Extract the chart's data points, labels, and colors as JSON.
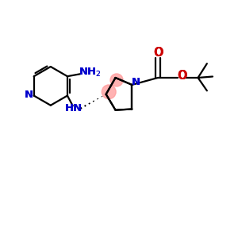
{
  "bg_color": "#ffffff",
  "bond_color": "#000000",
  "N_color": "#0000cc",
  "O_color": "#cc0000",
  "highlight_color": "#ff9999",
  "figsize": [
    3.0,
    3.0
  ],
  "dpi": 100,
  "xlim": [
    0,
    10
  ],
  "ylim": [
    0,
    10
  ]
}
